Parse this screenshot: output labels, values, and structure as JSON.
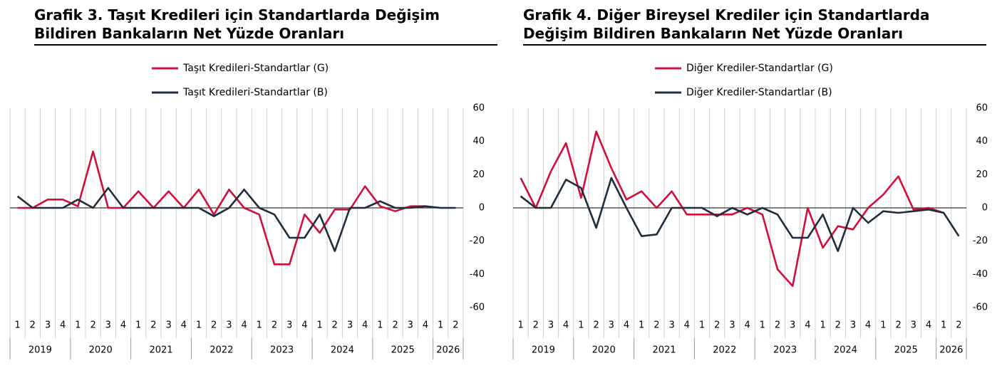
{
  "chart_data": [
    {
      "type": "line",
      "title": "Grafik 3. Taşıt Kredileri için Standartlarda Değişim Bildiren Bankaların Net Yüzde Oranları",
      "categories": [
        "1",
        "2",
        "3",
        "4",
        "1",
        "2",
        "3",
        "4",
        "1",
        "2",
        "3",
        "4",
        "1",
        "2",
        "3",
        "4",
        "1",
        "2",
        "3",
        "4",
        "1",
        "2",
        "3",
        "4",
        "1",
        "2",
        "3",
        "4",
        "1",
        "2"
      ],
      "year_groups": [
        {
          "label": "2019",
          "size": 4
        },
        {
          "label": "2020",
          "size": 4
        },
        {
          "label": "2021",
          "size": 4
        },
        {
          "label": "2022",
          "size": 4
        },
        {
          "label": "2023",
          "size": 4
        },
        {
          "label": "2024",
          "size": 4
        },
        {
          "label": "2025",
          "size": 4
        },
        {
          "label": "2026",
          "size": 2
        }
      ],
      "series": [
        {
          "name": "Taşıt Kredileri-Standartlar (G)",
          "color": "#d0103a",
          "values": [
            0,
            0,
            5,
            5,
            1,
            34,
            0,
            0,
            10,
            0,
            10,
            0,
            11,
            -4,
            11,
            0,
            -4,
            -34,
            -34,
            -4,
            -15,
            -1,
            -1,
            13,
            1,
            -2,
            1,
            1,
            null,
            null
          ]
        },
        {
          "name": "Taşıt Kredileri-Standartlar (B)",
          "color": "#1f2d3d",
          "values": [
            7,
            0,
            0,
            0,
            5,
            0,
            12,
            0,
            0,
            0,
            0,
            0,
            0,
            -5,
            0,
            11,
            0,
            -4,
            -18,
            -18,
            -4,
            -26,
            0,
            0,
            4,
            0,
            0,
            1,
            0,
            0
          ]
        }
      ],
      "ylim": [
        -60,
        60
      ],
      "yticks": [
        60,
        40,
        20,
        0,
        -20,
        -40,
        -60
      ]
    },
    {
      "type": "line",
      "title": "Grafik 4. Diğer Bireysel Krediler için Standartlarda Değişim Bildiren Bankaların Net Yüzde Oranları",
      "categories": [
        "1",
        "2",
        "3",
        "4",
        "1",
        "2",
        "3",
        "4",
        "1",
        "2",
        "3",
        "4",
        "1",
        "2",
        "3",
        "4",
        "1",
        "2",
        "3",
        "4",
        "1",
        "2",
        "3",
        "4",
        "1",
        "2",
        "3",
        "4",
        "1",
        "2"
      ],
      "year_groups": [
        {
          "label": "2019",
          "size": 4
        },
        {
          "label": "2020",
          "size": 4
        },
        {
          "label": "2021",
          "size": 4
        },
        {
          "label": "2022",
          "size": 4
        },
        {
          "label": "2023",
          "size": 4
        },
        {
          "label": "2024",
          "size": 4
        },
        {
          "label": "2025",
          "size": 4
        },
        {
          "label": "2026",
          "size": 2
        }
      ],
      "series": [
        {
          "name": "Diğer Krediler-Standartlar (G)",
          "color": "#d0103a",
          "values": [
            18,
            0,
            22,
            39,
            6,
            46,
            24,
            5,
            10,
            0,
            10,
            -4,
            -4,
            -4,
            -4,
            0,
            -4,
            -37,
            -47,
            0,
            -24,
            -11,
            -13,
            0,
            8,
            19,
            -1,
            0,
            -3,
            null
          ]
        },
        {
          "name": "Diğer Krediler-Standartlar (B)",
          "color": "#1f2d3d",
          "values": [
            7,
            0,
            0,
            17,
            12,
            -12,
            18,
            0,
            -17,
            -16,
            0,
            0,
            0,
            -5,
            0,
            -4,
            0,
            -4,
            -18,
            -18,
            -4,
            -26,
            0,
            -9,
            -2,
            -3,
            -2,
            -1,
            -3,
            -17
          ]
        }
      ],
      "ylim": [
        -60,
        60
      ],
      "yticks": [
        60,
        40,
        20,
        0,
        -20,
        -40,
        -60
      ]
    }
  ]
}
